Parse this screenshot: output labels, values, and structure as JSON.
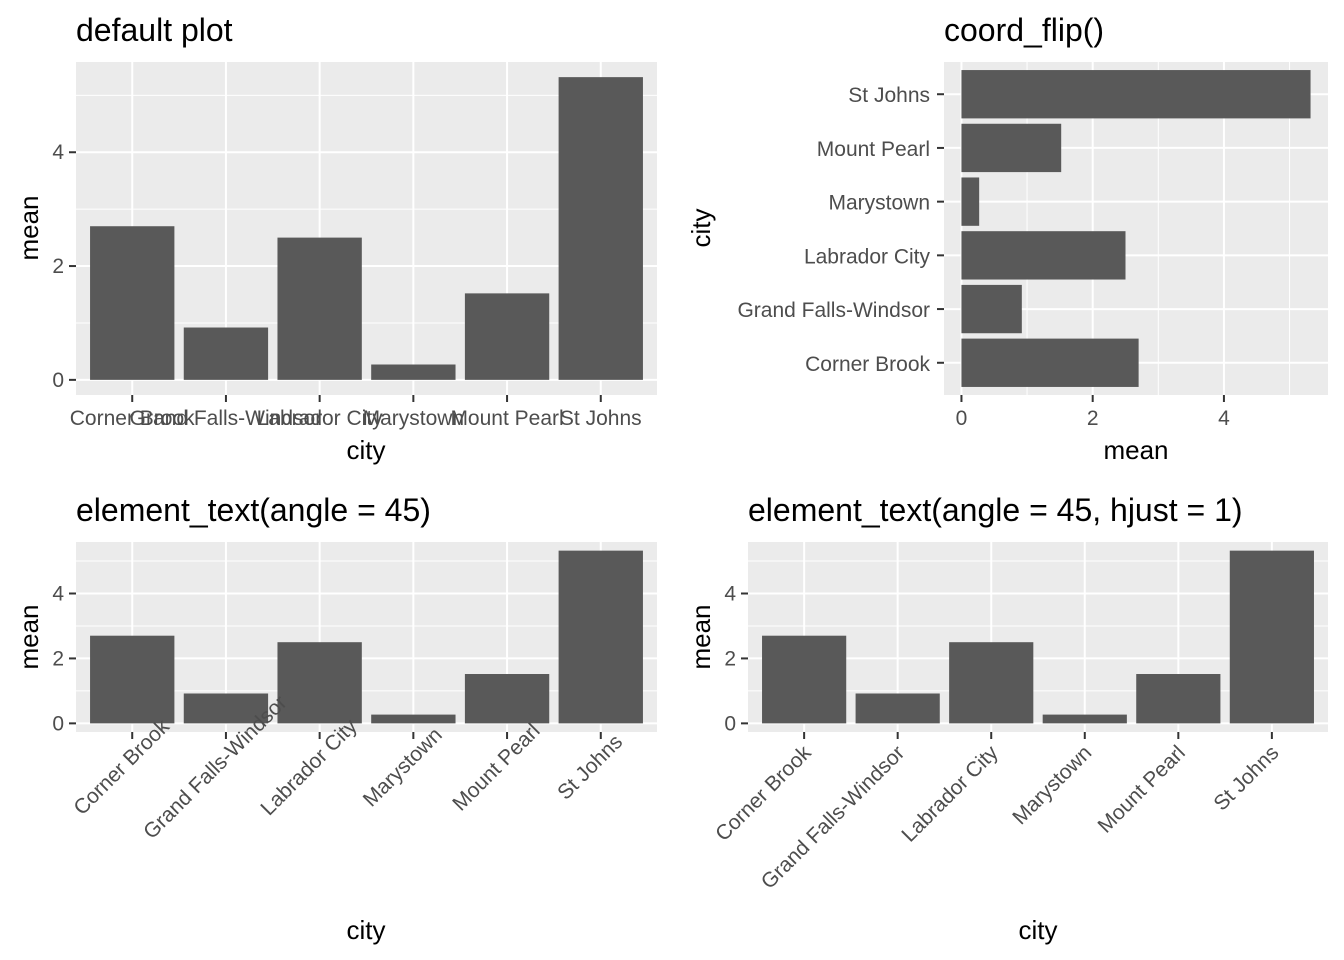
{
  "colors": {
    "panel_background": "#ebebeb",
    "grid_line": "#ffffff",
    "bar_fill": "#595959",
    "tick_text": "#4d4d4d",
    "tick_mark": "#333333",
    "title_text": "#000000"
  },
  "chart_data": [
    {
      "type": "bar",
      "title": "default plot",
      "xlabel": "city",
      "ylabel": "mean",
      "orientation": "vertical",
      "x_tick_angle": 0,
      "x_tick_hjust": 0.5,
      "categories": [
        "Corner Brook",
        "Grand Falls-Windsor",
        "Labrador City",
        "Marystown",
        "Mount Pearl",
        "St Johns"
      ],
      "values": [
        2.7,
        0.92,
        2.5,
        0.27,
        1.52,
        5.32
      ],
      "ylim": [
        0,
        5.32
      ],
      "y_ticks": [
        0,
        2,
        4
      ],
      "grid": true
    },
    {
      "type": "bar",
      "title": "coord_flip()",
      "xlabel": "mean",
      "ylabel": "city",
      "orientation": "horizontal",
      "categories": [
        "Corner Brook",
        "Grand Falls-Windsor",
        "Labrador City",
        "Marystown",
        "Mount Pearl",
        "St Johns"
      ],
      "values": [
        2.7,
        0.92,
        2.5,
        0.27,
        1.52,
        5.32
      ],
      "xlim": [
        0,
        5.32
      ],
      "x_ticks": [
        0,
        2,
        4
      ],
      "grid": true
    },
    {
      "type": "bar",
      "title": "element_text(angle = 45)",
      "xlabel": "city",
      "ylabel": "mean",
      "orientation": "vertical",
      "x_tick_angle": 45,
      "x_tick_hjust": 0.5,
      "categories": [
        "Corner Brook",
        "Grand Falls-Windsor",
        "Labrador City",
        "Marystown",
        "Mount Pearl",
        "St Johns"
      ],
      "values": [
        2.7,
        0.92,
        2.5,
        0.27,
        1.52,
        5.32
      ],
      "ylim": [
        0,
        5.32
      ],
      "y_ticks": [
        0,
        2,
        4
      ],
      "grid": true
    },
    {
      "type": "bar",
      "title": "element_text(angle = 45, hjust = 1)",
      "xlabel": "city",
      "ylabel": "mean",
      "orientation": "vertical",
      "x_tick_angle": 45,
      "x_tick_hjust": 1,
      "categories": [
        "Corner Brook",
        "Grand Falls-Windsor",
        "Labrador City",
        "Marystown",
        "Mount Pearl",
        "St Johns"
      ],
      "values": [
        2.7,
        0.92,
        2.5,
        0.27,
        1.52,
        5.32
      ],
      "ylim": [
        0,
        5.32
      ],
      "y_ticks": [
        0,
        2,
        4
      ],
      "grid": true
    }
  ]
}
